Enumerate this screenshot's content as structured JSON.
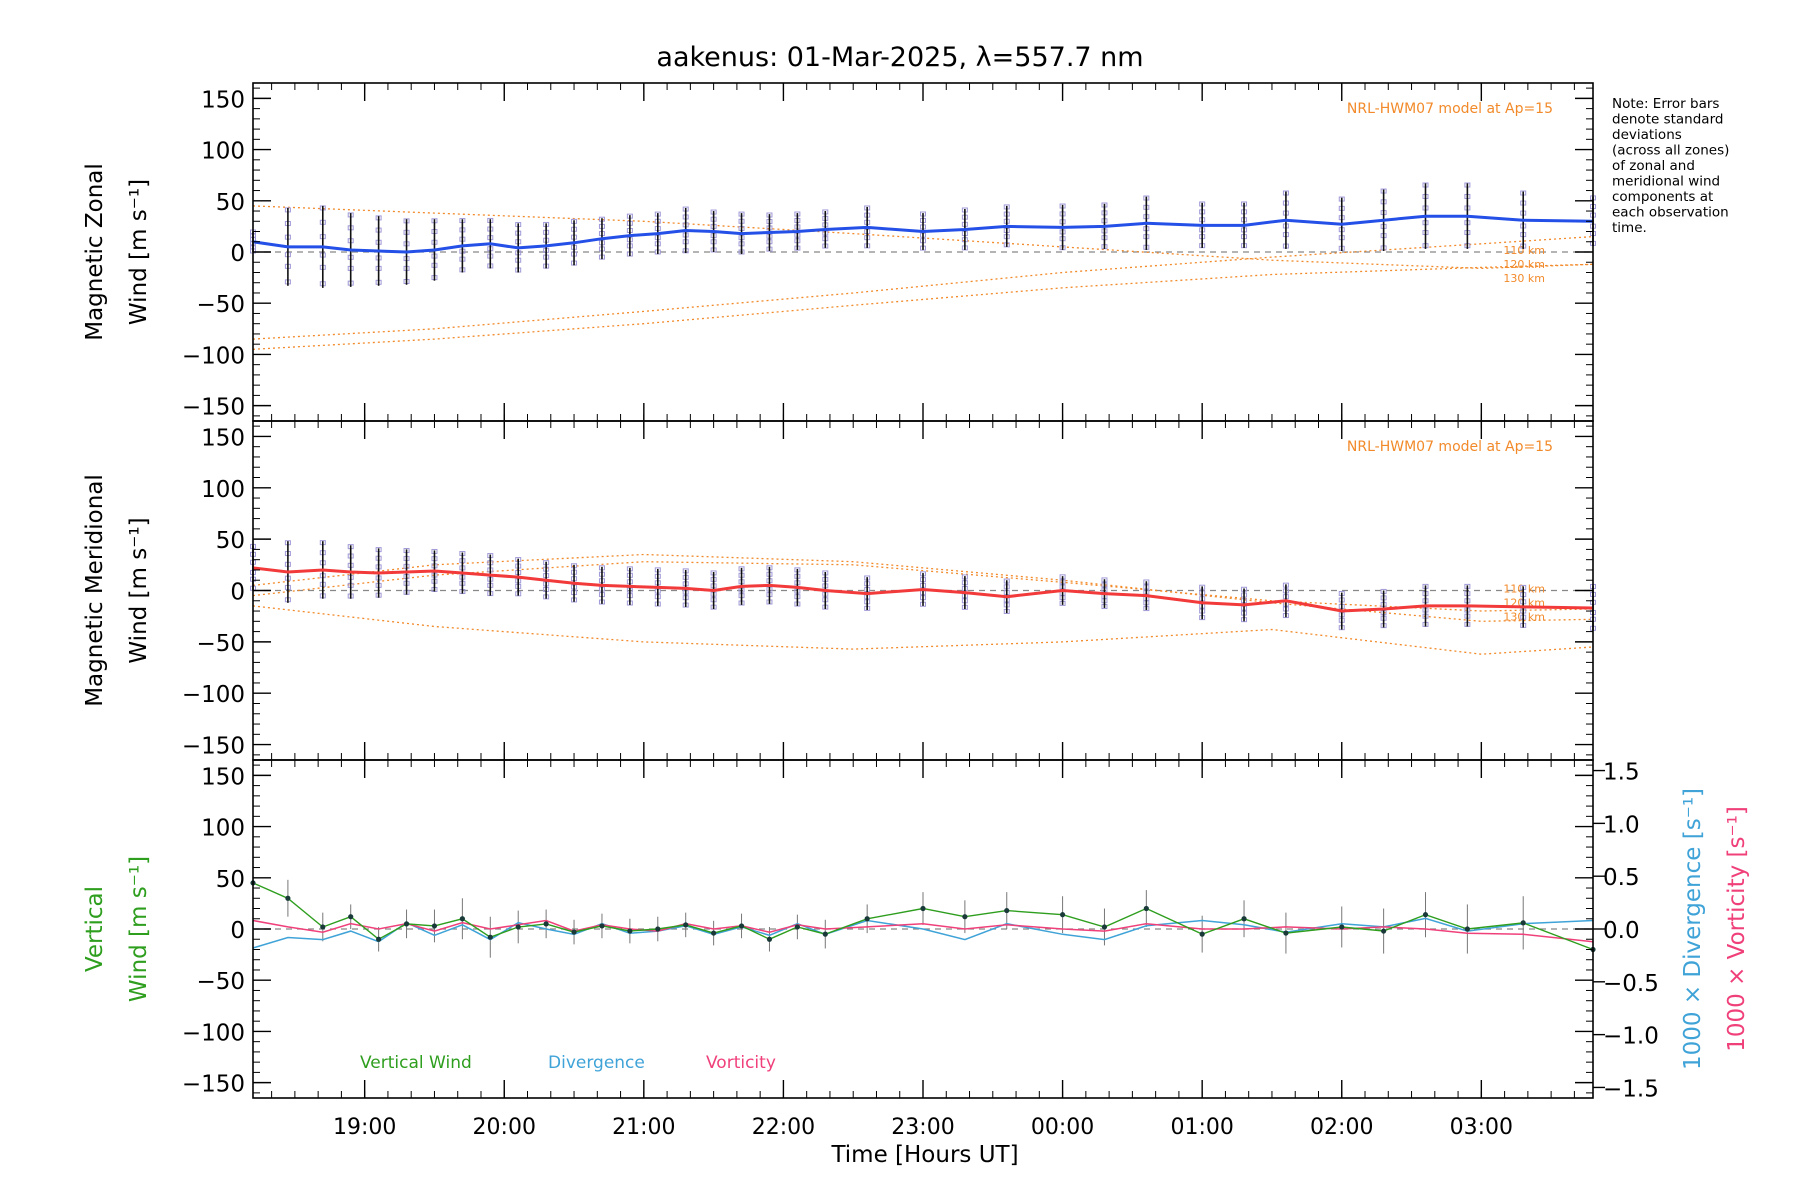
{
  "title": "aakenus: 01-Mar-2025, λ=557.7 nm",
  "note": [
    "Note: Error bars",
    "denote standard",
    "deviations",
    "(across all zones)",
    "of zonal and",
    "meridional wind",
    "components at",
    "each observation",
    "time."
  ],
  "colors": {
    "zonal": "#2450e8",
    "meridional": "#f23a3a",
    "vertical": "#2e9e1e",
    "divergence": "#3fa3d8",
    "vorticity": "#f0407a",
    "model": "#f28a2a",
    "zone_points": "#9f99d8",
    "axis": "#000000",
    "zero_line": "#888888"
  },
  "chart_data": [
    {
      "type": "line",
      "id": "zonal",
      "ylabel": [
        "Magnetic Zonal",
        "Wind [m s⁻¹]"
      ],
      "ylim": [
        -165,
        165
      ],
      "yticks": [
        150,
        100,
        50,
        0,
        -50,
        -100,
        -150
      ],
      "ytick_labels": [
        "150",
        "100",
        "50",
        "0",
        "−50",
        "−100",
        "−150"
      ],
      "model_label": "NRL-HWM07 model at Ap=15",
      "model_altitudes": [
        "110 km",
        "120 km",
        "130 km"
      ],
      "series": [
        {
          "name": "Magnetic Zonal Wind",
          "x": [
            18.2,
            18.45,
            18.7,
            18.9,
            19.1,
            19.3,
            19.5,
            19.7,
            19.9,
            20.1,
            20.3,
            20.5,
            20.7,
            20.9,
            21.1,
            21.3,
            21.5,
            21.7,
            21.9,
            22.1,
            22.3,
            22.6,
            23.0,
            23.3,
            23.6,
            24.0,
            24.3,
            24.6,
            25.0,
            25.3,
            25.6,
            26.0,
            26.3,
            26.6,
            26.9,
            27.3,
            27.8
          ],
          "y": [
            10,
            5,
            5,
            2,
            1,
            0,
            2,
            6,
            8,
            4,
            6,
            9,
            13,
            16,
            18,
            21,
            20,
            18,
            19,
            20,
            22,
            24,
            20,
            22,
            25,
            24,
            25,
            28,
            26,
            26,
            31,
            27,
            31,
            35,
            35,
            31,
            30
          ],
          "err": [
            10,
            38,
            40,
            36,
            34,
            32,
            30,
            26,
            24,
            24,
            22,
            22,
            20,
            20,
            20,
            22,
            20,
            20,
            18,
            18,
            18,
            20,
            18,
            20,
            20,
            22,
            22,
            26,
            22,
            22,
            28,
            26,
            30,
            32,
            32,
            28,
            24
          ]
        }
      ],
      "models": [
        {
          "altitude": "110 km",
          "x": [
            18.2,
            19.5,
            21.0,
            22.5,
            24.0,
            25.5,
            27.0,
            27.8
          ],
          "y": [
            45,
            38,
            30,
            18,
            5,
            -8,
            -16,
            -12
          ]
        },
        {
          "altitude": "120 km",
          "x": [
            18.2,
            19.5,
            21.0,
            22.5,
            24.0,
            25.5,
            27.0,
            27.8
          ],
          "y": [
            -85,
            -75,
            -58,
            -40,
            -20,
            -5,
            8,
            15
          ]
        },
        {
          "altitude": "130 km",
          "x": [
            18.2,
            19.5,
            21.0,
            22.5,
            24.0,
            25.5,
            27.0,
            27.8
          ],
          "y": [
            -95,
            -85,
            -70,
            -52,
            -35,
            -22,
            -15,
            -12
          ]
        }
      ]
    },
    {
      "type": "line",
      "id": "meridional",
      "ylabel": [
        "Magnetic Meridional",
        "Wind [m s⁻¹]"
      ],
      "ylim": [
        -165,
        165
      ],
      "yticks": [
        150,
        100,
        50,
        0,
        -50,
        -100,
        -150
      ],
      "ytick_labels": [
        "150",
        "100",
        "50",
        "0",
        "−50",
        "−100",
        "−150"
      ],
      "model_label": "NRL-HWM07 model at Ap=15",
      "model_altitudes": [
        "110 km",
        "120 km",
        "130 km"
      ],
      "series": [
        {
          "name": "Magnetic Meridional Wind",
          "x": [
            18.2,
            18.45,
            18.7,
            18.9,
            19.1,
            19.3,
            19.5,
            19.7,
            19.9,
            20.1,
            20.3,
            20.5,
            20.7,
            20.9,
            21.1,
            21.3,
            21.5,
            21.7,
            21.9,
            22.1,
            22.3,
            22.6,
            23.0,
            23.3,
            23.6,
            24.0,
            24.3,
            24.6,
            25.0,
            25.3,
            25.6,
            26.0,
            26.3,
            26.6,
            26.9,
            27.3,
            27.8
          ],
          "y": [
            22,
            18,
            20,
            18,
            17,
            18,
            19,
            17,
            15,
            13,
            10,
            7,
            5,
            4,
            3,
            2,
            0,
            4,
            5,
            3,
            0,
            -3,
            1,
            -2,
            -6,
            0,
            -3,
            -5,
            -12,
            -14,
            -10,
            -20,
            -18,
            -15,
            -15,
            -16,
            -17
          ],
          "err": [
            22,
            30,
            28,
            26,
            24,
            22,
            20,
            20,
            20,
            18,
            18,
            18,
            18,
            18,
            18,
            18,
            18,
            18,
            18,
            18,
            18,
            16,
            16,
            16,
            16,
            14,
            14,
            14,
            16,
            16,
            16,
            18,
            18,
            20,
            20,
            20,
            22
          ]
        }
      ],
      "models": [
        {
          "altitude": "110 km",
          "x": [
            18.2,
            19.5,
            21.0,
            22.5,
            24.0,
            25.5,
            27.0,
            27.8
          ],
          "y": [
            5,
            25,
            35,
            28,
            10,
            -12,
            -30,
            -28
          ]
        },
        {
          "altitude": "120 km",
          "x": [
            18.2,
            19.5,
            21.0,
            22.5,
            24.0,
            25.5,
            27.0,
            27.8
          ],
          "y": [
            -5,
            15,
            28,
            25,
            8,
            -10,
            -20,
            -18
          ]
        },
        {
          "altitude": "130 km",
          "x": [
            18.2,
            19.5,
            21.0,
            22.5,
            24.0,
            25.5,
            27.0,
            27.8
          ],
          "y": [
            -15,
            -35,
            -50,
            -57,
            -50,
            -38,
            -62,
            -55
          ]
        }
      ]
    },
    {
      "type": "line",
      "id": "vertical",
      "ylabel": [
        "Vertical",
        "Wind [m s⁻¹]"
      ],
      "ylim": [
        -165,
        165
      ],
      "yticks": [
        150,
        100,
        50,
        0,
        -50,
        -100,
        -150
      ],
      "ytick_labels": [
        "150",
        "100",
        "50",
        "0",
        "−50",
        "−100",
        "−150"
      ],
      "y2label": [
        "1000 × Divergence [s⁻¹]",
        "1000 × Vorticity [s⁻¹]"
      ],
      "y2lim": [
        -1.6,
        1.6
      ],
      "y2ticks": [
        1.5,
        1.0,
        0.5,
        0.0,
        -0.5,
        -1.0,
        -1.5
      ],
      "y2tick_labels": [
        "1.5",
        "1.0",
        "0.5",
        "0.0",
        "−0.5",
        "−1.0",
        "−1.5"
      ],
      "legend": [
        "Vertical Wind",
        "Divergence",
        "Vorticity"
      ],
      "series": [
        {
          "name": "Vertical Wind",
          "axis": "left",
          "x": [
            18.2,
            18.45,
            18.7,
            18.9,
            19.1,
            19.3,
            19.5,
            19.7,
            19.9,
            20.1,
            20.3,
            20.5,
            20.7,
            20.9,
            21.1,
            21.3,
            21.5,
            21.7,
            21.9,
            22.1,
            22.3,
            22.6,
            23.0,
            23.3,
            23.6,
            24.0,
            24.3,
            24.6,
            25.0,
            25.3,
            25.6,
            26.0,
            26.3,
            26.6,
            26.9,
            27.3,
            27.8
          ],
          "y": [
            45,
            30,
            2,
            12,
            -10,
            5,
            3,
            10,
            -8,
            2,
            5,
            -3,
            3,
            -2,
            0,
            4,
            -4,
            3,
            -10,
            2,
            -5,
            10,
            20,
            12,
            18,
            14,
            2,
            20,
            -5,
            10,
            -4,
            2,
            -2,
            14,
            0,
            6,
            -20
          ],
          "err": [
            10,
            18,
            14,
            12,
            12,
            14,
            16,
            20,
            20,
            16,
            14,
            12,
            12,
            12,
            12,
            12,
            12,
            12,
            12,
            12,
            14,
            14,
            16,
            16,
            18,
            18,
            18,
            18,
            18,
            18,
            20,
            20,
            22,
            22,
            24,
            26,
            28
          ]
        },
        {
          "name": "Divergence",
          "axis": "right",
          "x": [
            18.2,
            18.45,
            18.7,
            18.9,
            19.1,
            19.3,
            19.5,
            19.7,
            19.9,
            20.1,
            20.3,
            20.5,
            20.7,
            20.9,
            21.1,
            21.3,
            21.5,
            21.7,
            21.9,
            22.1,
            22.3,
            22.6,
            23.0,
            23.3,
            23.6,
            24.0,
            24.3,
            24.6,
            25.0,
            25.3,
            25.6,
            26.0,
            26.3,
            26.6,
            26.9,
            27.3,
            27.8
          ],
          "y": [
            -0.18,
            -0.08,
            -0.1,
            -0.02,
            -0.12,
            0.06,
            -0.06,
            0.04,
            -0.1,
            0.06,
            0.0,
            -0.05,
            0.05,
            -0.04,
            -0.02,
            0.03,
            -0.05,
            0.02,
            -0.06,
            0.05,
            -0.05,
            0.08,
            0.0,
            -0.1,
            0.05,
            -0.05,
            -0.1,
            0.03,
            0.08,
            0.04,
            -0.03,
            0.05,
            0.02,
            0.1,
            -0.02,
            0.05,
            0.08
          ]
        },
        {
          "name": "Vorticity",
          "axis": "right",
          "x": [
            18.2,
            18.45,
            18.7,
            18.9,
            19.1,
            19.3,
            19.5,
            19.7,
            19.9,
            20.1,
            20.3,
            20.5,
            20.7,
            20.9,
            21.1,
            21.3,
            21.5,
            21.7,
            21.9,
            22.1,
            22.3,
            22.6,
            23.0,
            23.3,
            23.6,
            24.0,
            24.3,
            24.6,
            25.0,
            25.3,
            25.6,
            26.0,
            26.3,
            26.6,
            26.9,
            27.3,
            27.8
          ],
          "y": [
            0.08,
            0.02,
            -0.03,
            0.05,
            0.0,
            0.05,
            -0.02,
            0.06,
            0.0,
            0.04,
            0.08,
            -0.02,
            0.04,
            0.0,
            -0.02,
            0.05,
            0.0,
            0.03,
            -0.03,
            0.04,
            0.0,
            0.02,
            0.05,
            0.0,
            0.04,
            0.0,
            -0.02,
            0.05,
            0.0,
            0.0,
            0.02,
            0.0,
            0.02,
            0.0,
            -0.04,
            -0.05,
            -0.12
          ]
        }
      ]
    }
  ],
  "x_axis": {
    "label": "Time [Hours UT]",
    "xlim": [
      18.2,
      27.8
    ],
    "ticks": [
      19,
      20,
      21,
      22,
      23,
      24,
      25,
      26,
      27
    ],
    "tick_labels": [
      "19:00",
      "20:00",
      "21:00",
      "22:00",
      "23:00",
      "00:00",
      "01:00",
      "02:00",
      "03:00"
    ]
  }
}
